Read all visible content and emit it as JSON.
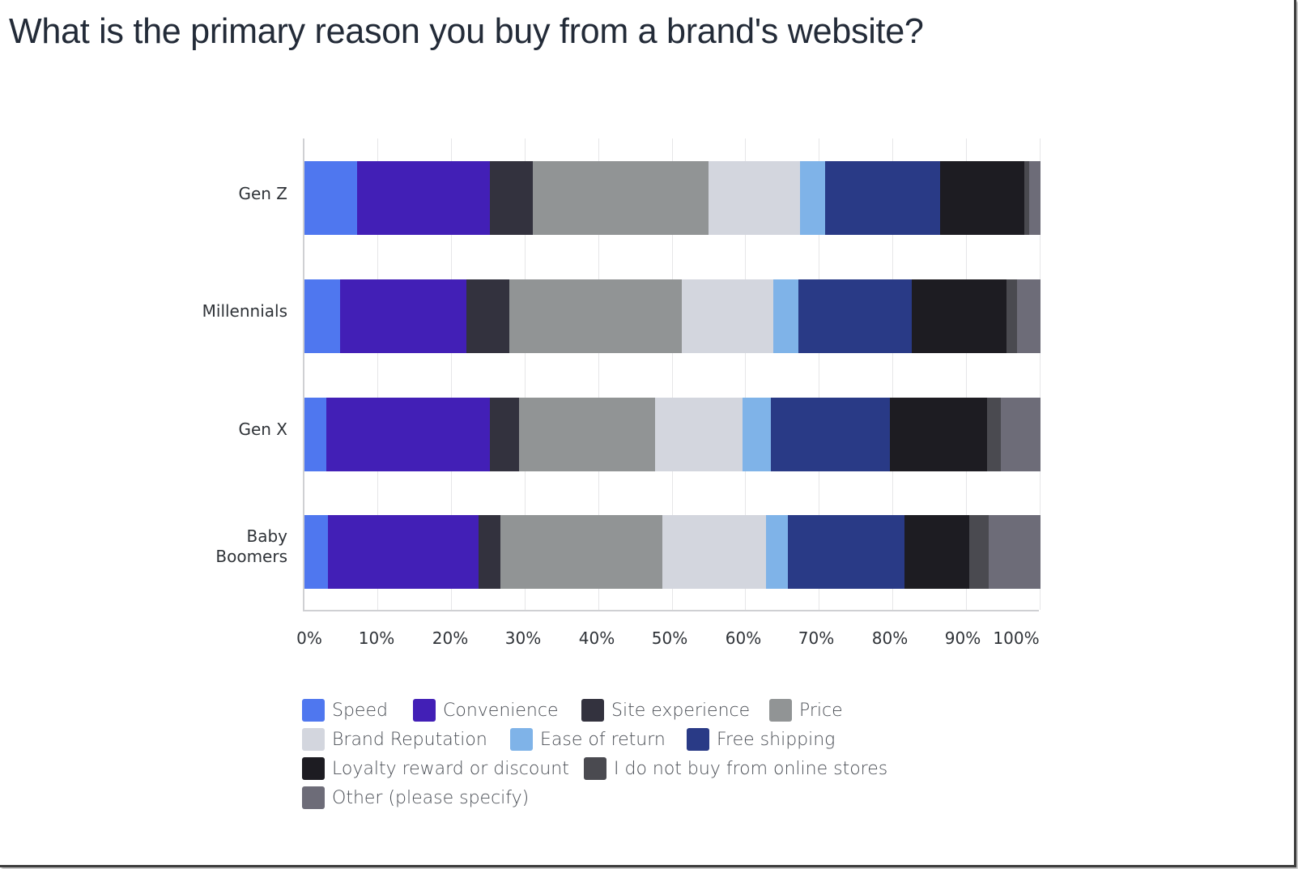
{
  "chart_data": {
    "type": "bar",
    "orientation": "horizontal",
    "stacked": true,
    "title": "What is the primary reason you buy from a brand's website?",
    "xlabel": "",
    "ylabel": "",
    "xlim": [
      0,
      100
    ],
    "grid": true,
    "legend_position": "bottom",
    "categories": [
      "Gen Z",
      "Millennials",
      "Gen X",
      "Baby Boomers"
    ],
    "x_ticks": [
      "0%",
      "10%",
      "20%",
      "30%",
      "40%",
      "50%",
      "60%",
      "70%",
      "80%",
      "90%",
      "100%"
    ],
    "series": [
      {
        "name": "Speed",
        "color": "#4f77ef",
        "values": [
          7.1,
          4.8,
          3.0,
          3.2
        ]
      },
      {
        "name": "Convenience",
        "color": "#421fb6",
        "values": [
          18.1,
          17.2,
          22.2,
          20.5
        ]
      },
      {
        "name": "Site experience",
        "color": "#33323e",
        "values": [
          5.8,
          5.8,
          4.0,
          2.9
        ]
      },
      {
        "name": "Price",
        "color": "#919495",
        "values": [
          23.9,
          23.5,
          18.4,
          22.0
        ]
      },
      {
        "name": "Brand Reputation",
        "color": "#d3d6de",
        "values": [
          12.4,
          12.4,
          11.9,
          14.1
        ]
      },
      {
        "name": "Ease of return",
        "color": "#7fb3e8",
        "values": [
          3.4,
          3.4,
          3.9,
          3.0
        ]
      },
      {
        "name": "Free shipping",
        "color": "#293a86",
        "values": [
          15.7,
          15.4,
          16.1,
          15.8
        ]
      },
      {
        "name": "Loyalty reward or discount",
        "color": "#1d1c22",
        "values": [
          11.4,
          12.9,
          13.2,
          8.8
        ]
      },
      {
        "name": "I do not buy from online stores",
        "color": "#4a4a50",
        "values": [
          0.7,
          1.4,
          1.9,
          2.7
        ]
      },
      {
        "name": "Other (please specify)",
        "color": "#6d6c78",
        "values": [
          1.5,
          3.2,
          5.4,
          7.0
        ]
      }
    ]
  },
  "ylabels": {
    "gen_z": "Gen Z",
    "millennials": "Millennials",
    "gen_x": "Gen X",
    "boomers_line1": "Baby",
    "boomers_line2": "Boomers"
  }
}
